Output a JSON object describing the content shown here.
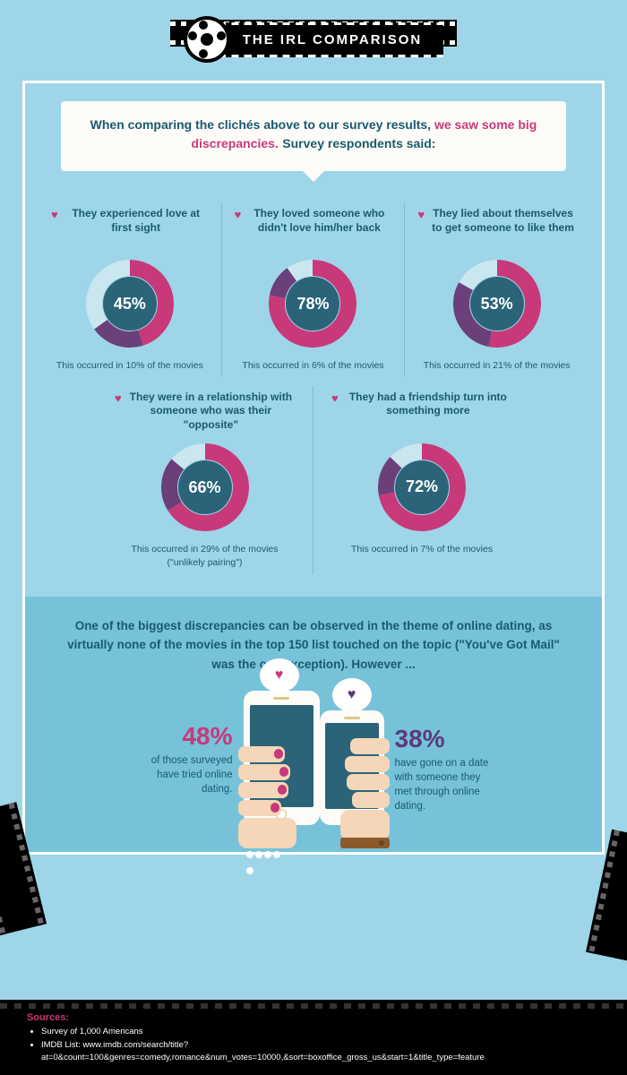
{
  "header": {
    "title": "THE IRL COMPARISON"
  },
  "intro": {
    "line1": "When comparing the clichés above to our survey results, ",
    "highlight": "we saw some big discrepancies.",
    "line2": " Survey respondents said:"
  },
  "colors": {
    "pink": "#c8397a",
    "purple": "#6b3f7a",
    "lightblue": "#cae6ef",
    "darkteal": "#2b6478"
  },
  "stats_row1": [
    {
      "title": "They experienced love at first sight",
      "percent": 45,
      "pink": 45,
      "purple": 20,
      "footer": "This occurred in 10% of the movies"
    },
    {
      "title": "They loved someone who didn't love him/her back",
      "percent": 78,
      "pink": 78,
      "purple": 12,
      "footer": "This occurred in 6% of the movies"
    },
    {
      "title": "They lied about themselves to get someone to like them",
      "percent": 53,
      "pink": 53,
      "purple": 30,
      "footer": "This occurred in 21% of the movies"
    }
  ],
  "stats_row2": [
    {
      "title": "They were in a relationship with someone who was their \"opposite\"",
      "percent": 66,
      "pink": 66,
      "purple": 20,
      "footer": "This occurred in 29% of the movies (\"unlikely pairing\")"
    },
    {
      "title": "They had a friendship turn into something more",
      "percent": 72,
      "pink": 72,
      "purple": 15,
      "footer": "This occurred in 7% of the movies"
    }
  ],
  "bottom": {
    "text": "One of the biggest discrepancies can be observed in the theme of online dating, as virtually none of the movies in the top 150 list touched on the topic (\"You've Got Mail\" was the one exception). However ...",
    "left_percent": "48%",
    "left_text": "of those surveyed have tried online dating.",
    "right_percent": "38%",
    "right_text": "have gone on a date with someone they met through online dating."
  },
  "sources": {
    "heading": "Sources:",
    "items": [
      "Survey of 1,000 Americans",
      "IMDB List: www.imdb.com/search/title?at=0&count=100&genres=comedy,romance&num_votes=10000,&sort=boxoffice_gross_us&start=1&title_type=feature"
    ]
  }
}
